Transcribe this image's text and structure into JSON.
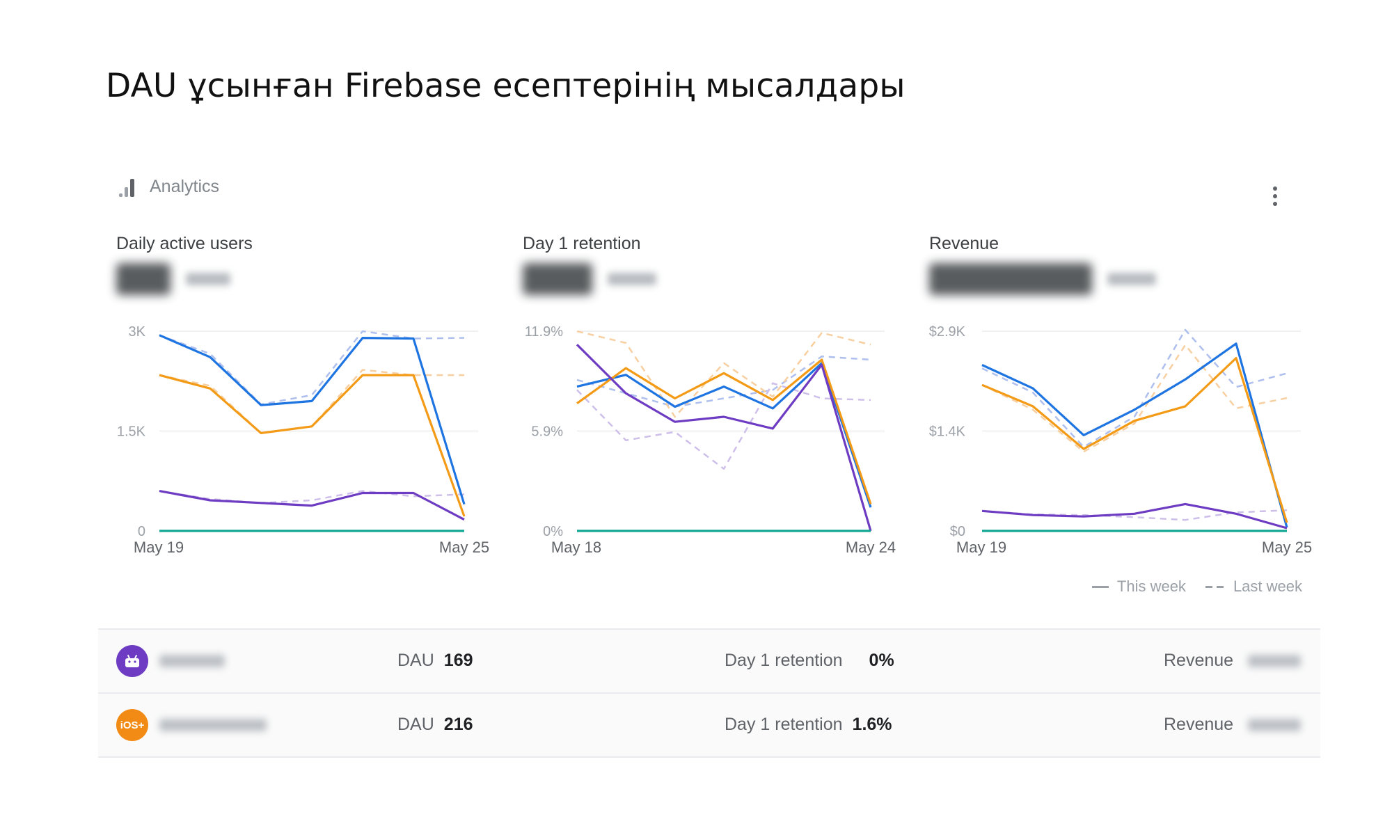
{
  "page": {
    "title": "DAU ұсынған Firebase есептерінің мысалдары"
  },
  "header": {
    "label": "Analytics",
    "icon": "bar-chart-icon",
    "menu_icon": "more-vert-icon"
  },
  "colors": {
    "blue": "#1e74e0",
    "orange": "#f39a16",
    "purple": "#6d3cc2",
    "teal": "#12a693",
    "blue_last": "#aebfee",
    "orange_last": "#f7cfa1",
    "purple_last": "#cdbfe9"
  },
  "charts": [
    {
      "title": "Daily active users",
      "yticks": [
        "3K",
        "1.5K",
        "0"
      ],
      "xticks": [
        "May 19",
        "May 25"
      ],
      "chart_data": {
        "type": "line",
        "x": [
          "May 19",
          "May 20",
          "May 21",
          "May 22",
          "May 23",
          "May 24",
          "May 25"
        ],
        "ylim": [
          0,
          3000
        ],
        "series": [
          {
            "period": "This week",
            "color": "#1e74e0",
            "values": [
              2940,
              2610,
              1890,
              1950,
              2900,
              2890,
              400
            ]
          },
          {
            "period": "This week",
            "color": "#f39a16",
            "values": [
              2340,
              2140,
              1470,
              1570,
              2340,
              2340,
              220
            ]
          },
          {
            "period": "This week",
            "color": "#6d3cc2",
            "values": [
              600,
              460,
              420,
              380,
              570,
              570,
              170
            ]
          },
          {
            "period": "This week",
            "color": "#12a693",
            "values": [
              0,
              0,
              0,
              0,
              0,
              0,
              0
            ]
          },
          {
            "period": "Last week",
            "color": "#aebfee",
            "values": [
              2940,
              2660,
              1900,
              2040,
              3000,
              2890,
              2900
            ]
          },
          {
            "period": "Last week",
            "color": "#f7cfa1",
            "values": [
              2340,
              2180,
              1470,
              1570,
              2420,
              2340,
              2340
            ]
          },
          {
            "period": "Last week",
            "color": "#cdbfe9",
            "values": [
              600,
              480,
              420,
              460,
              600,
              520,
              550
            ]
          }
        ]
      }
    },
    {
      "title": "Day 1 retention",
      "yticks": [
        "11.9%",
        "5.9%",
        "0%"
      ],
      "xticks": [
        "May 18",
        "May 24"
      ],
      "chart_data": {
        "type": "line",
        "x": [
          "May 18",
          "May 19",
          "May 20",
          "May 21",
          "May 22",
          "May 23",
          "May 24"
        ],
        "ylim": [
          0,
          11.9
        ],
        "series": [
          {
            "period": "This week",
            "color": "#1e74e0",
            "values": [
              8.6,
              9.3,
              7.4,
              8.6,
              7.3,
              10.0,
              1.4
            ]
          },
          {
            "period": "This week",
            "color": "#f39a16",
            "values": [
              7.6,
              9.7,
              7.9,
              9.4,
              7.8,
              10.2,
              1.6
            ]
          },
          {
            "period": "This week",
            "color": "#6d3cc2",
            "values": [
              11.1,
              8.2,
              6.5,
              6.8,
              6.1,
              9.9,
              0
            ]
          },
          {
            "period": "This week",
            "color": "#12a693",
            "values": [
              0,
              0,
              0,
              0,
              0,
              0,
              0
            ]
          },
          {
            "period": "Last week",
            "color": "#aebfee",
            "values": [
              9.0,
              8.2,
              7.4,
              7.9,
              8.4,
              10.4,
              10.2
            ]
          },
          {
            "period": "Last week",
            "color": "#f7cfa1",
            "values": [
              11.9,
              11.2,
              6.8,
              10.0,
              8.0,
              11.8,
              11.1
            ]
          },
          {
            "period": "Last week",
            "color": "#cdbfe9",
            "values": [
              8.4,
              5.4,
              5.9,
              3.7,
              8.8,
              7.9,
              7.8
            ]
          }
        ]
      }
    },
    {
      "title": "Revenue",
      "yticks": [
        "$2.9K",
        "$1.4K",
        "$0"
      ],
      "xticks": [
        "May 19",
        "May 25"
      ],
      "chart_data": {
        "type": "line",
        "x": [
          "May 19",
          "May 20",
          "May 21",
          "May 22",
          "May 23",
          "May 24",
          "May 25"
        ],
        "ylim": [
          0,
          2900
        ],
        "series": [
          {
            "period": "This week",
            "color": "#1e74e0",
            "values": [
              2410,
              2070,
              1390,
              1760,
              2200,
              2720,
              50
            ]
          },
          {
            "period": "This week",
            "color": "#f39a16",
            "values": [
              2120,
              1810,
              1190,
              1600,
              1810,
              2510,
              120
            ]
          },
          {
            "period": "This week",
            "color": "#6d3cc2",
            "values": [
              290,
              230,
              210,
              250,
              390,
              250,
              40
            ]
          },
          {
            "period": "This week",
            "color": "#12a693",
            "values": [
              0,
              0,
              0,
              0,
              0,
              0,
              0
            ]
          },
          {
            "period": "Last week",
            "color": "#aebfee",
            "values": [
              2360,
              2010,
              1220,
              1660,
              2920,
              2090,
              2290
            ]
          },
          {
            "period": "Last week",
            "color": "#f7cfa1",
            "values": [
              2120,
              1760,
              1150,
              1560,
              2700,
              1780,
              1930
            ]
          },
          {
            "period": "Last week",
            "color": "#cdbfe9",
            "values": [
              290,
              240,
              230,
              200,
              160,
              270,
              300
            ]
          }
        ]
      }
    }
  ],
  "legend": {
    "this_week": "This week",
    "last_week": "Last week"
  },
  "apps": [
    {
      "icon": "android-icon",
      "icon_color": "#6d3cc2",
      "dau_label": "DAU",
      "dau": "169",
      "retention_label": "Day 1 retention",
      "retention": "0%",
      "revenue_label": "Revenue"
    },
    {
      "icon": "ios-icon",
      "icon_color": "#f28b16",
      "icon_text": "iOS+",
      "dau_label": "DAU",
      "dau": "216",
      "retention_label": "Day 1 retention",
      "retention": "1.6%",
      "revenue_label": "Revenue"
    }
  ]
}
